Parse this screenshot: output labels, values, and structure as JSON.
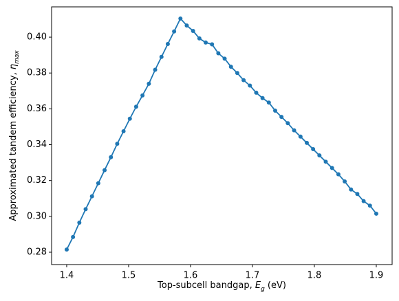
{
  "chart_data": {
    "type": "line",
    "xlabel": [
      "Top-subcell bandgap, ",
      "E",
      "g",
      " (eV)"
    ],
    "ylabel": [
      "Approximated tandem efficiency, ",
      "η",
      "max"
    ],
    "x": [
      1.4,
      1.4102,
      1.4204,
      1.4306,
      1.4408,
      1.451,
      1.4612,
      1.4714,
      1.4816,
      1.4918,
      1.502,
      1.5122,
      1.5224,
      1.5327,
      1.5429,
      1.5531,
      1.5633,
      1.5735,
      1.5837,
      1.5939,
      1.6041,
      1.6143,
      1.6245,
      1.6347,
      1.6449,
      1.6551,
      1.6653,
      1.6755,
      1.6857,
      1.6959,
      1.7061,
      1.7163,
      1.7265,
      1.7367,
      1.7469,
      1.7571,
      1.7673,
      1.7776,
      1.7878,
      1.798,
      1.8082,
      1.8184,
      1.8286,
      1.8388,
      1.849,
      1.8592,
      1.8694,
      1.8796,
      1.8898,
      1.9
    ],
    "series": [
      {
        "color": "#1f77b4",
        "values": [
          0.2815,
          0.2885,
          0.2965,
          0.304,
          0.3112,
          0.3185,
          0.3258,
          0.333,
          0.3405,
          0.3475,
          0.3545,
          0.3612,
          0.3675,
          0.374,
          0.3818,
          0.389,
          0.3962,
          0.4032,
          0.4104,
          0.4065,
          0.4035,
          0.3993,
          0.397,
          0.396,
          0.391,
          0.388,
          0.3835,
          0.38,
          0.376,
          0.373,
          0.369,
          0.366,
          0.3635,
          0.359,
          0.3555,
          0.352,
          0.348,
          0.3445,
          0.341,
          0.3375,
          0.334,
          0.3305,
          0.327,
          0.3235,
          0.3195,
          0.315,
          0.3125,
          0.3085,
          0.306,
          0.3015
        ]
      }
    ],
    "xlim": [
      1.3756,
      1.9256
    ],
    "ylim": [
      0.2731,
      0.4169
    ],
    "xticks": [
      1.4,
      1.5,
      1.6,
      1.7,
      1.8,
      1.9
    ],
    "yticks": [
      {
        "value": 0.28,
        "label": "0.28"
      },
      {
        "value": 0.3,
        "label": "0.30"
      },
      0.32,
      0.34,
      0.36,
      0.38,
      {
        "value": 0.4,
        "label": "0.40"
      }
    ]
  }
}
